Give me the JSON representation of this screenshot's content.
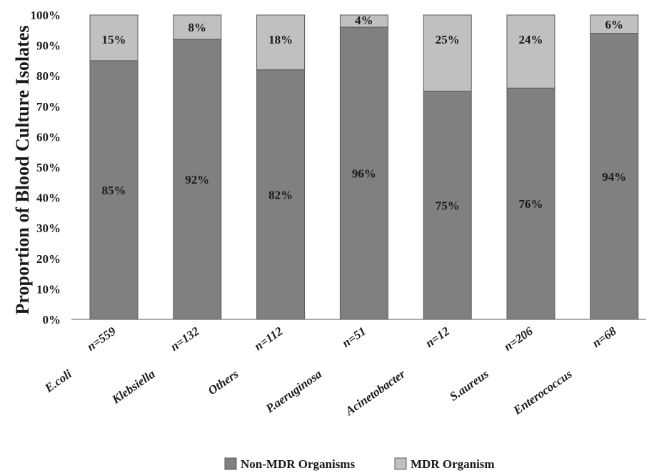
{
  "chart_data": {
    "type": "bar",
    "stacked": true,
    "ylabel": "Proportion of Blood Culture Isolates",
    "xlabel": "",
    "ylim": [
      0,
      100
    ],
    "yticks": [
      "0%",
      "10%",
      "20%",
      "30%",
      "40%",
      "50%",
      "60%",
      "70%",
      "80%",
      "90%",
      "100%"
    ],
    "categories": [
      "E.coli",
      "Klebsiella",
      "Others",
      "P.aeruginosa",
      "Acinetobacter",
      "S.aureus",
      "Enterococcus"
    ],
    "counts": [
      "n=559",
      "n=132",
      "n=112",
      "n=51",
      "n=12",
      "n=206",
      "n=68"
    ],
    "series": [
      {
        "name": "Non-MDR Organisms",
        "color": "#808083",
        "values": [
          85,
          92,
          82,
          96,
          75,
          76,
          94
        ],
        "labels": [
          "85%",
          "92%",
          "82%",
          "96%",
          "75%",
          "76%",
          "94%"
        ]
      },
      {
        "name": "MDR Organism",
        "color": "#c0c0c3",
        "values": [
          15,
          8,
          18,
          4,
          25,
          24,
          6
        ],
        "labels": [
          "15%",
          "8%",
          "18%",
          "4%",
          "25%",
          "24%",
          "6%"
        ]
      }
    ],
    "grid": false,
    "legend_position": "bottom"
  }
}
